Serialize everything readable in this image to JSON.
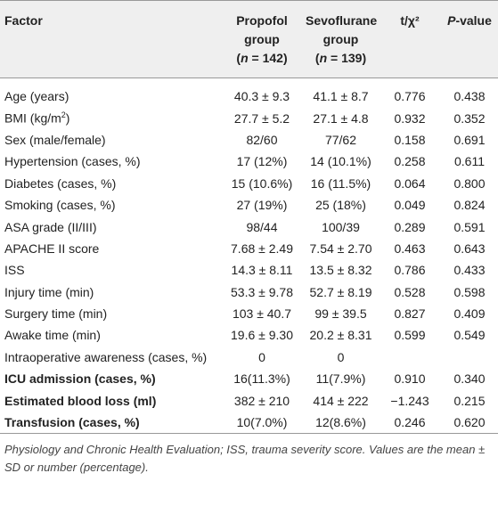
{
  "header": {
    "factor": "Factor",
    "propofol": {
      "name": "Propofol group",
      "n": [
        "(",
        "n",
        " = 142)"
      ]
    },
    "sevoflurane": {
      "name": "Sevoflurane group",
      "n": [
        "(",
        "n",
        " = 139)"
      ]
    },
    "stat": "t/χ²",
    "pvalue": [
      "P",
      "-value"
    ]
  },
  "table": {
    "rows": [
      {
        "cells": [
          "Age (years)",
          "40.3 ± 9.3",
          "41.1 ± 8.7",
          "0.776",
          "0.438"
        ]
      },
      {
        "cells": [
          [
            "BMI (kg/m",
            "2",
            ")"
          ],
          "27.7 ± 5.2",
          "27.1 ± 4.8",
          "0.932",
          "0.352"
        ]
      },
      {
        "cells": [
          "Sex (male/female)",
          "82/60",
          "77/62",
          "0.158",
          "0.691"
        ]
      },
      {
        "cells": [
          "Hypertension (cases, %)",
          "17 (12%)",
          "14 (10.1%)",
          "0.258",
          "0.611"
        ]
      },
      {
        "cells": [
          "Diabetes (cases, %)",
          "15 (10.6%)",
          "16 (11.5%)",
          "0.064",
          "0.800"
        ]
      },
      {
        "cells": [
          "Smoking (cases, %)",
          "27 (19%)",
          "25 (18%)",
          "0.049",
          "0.824"
        ]
      },
      {
        "cells": [
          "ASA grade (II/III)",
          "98/44",
          "100/39",
          "0.289",
          "0.591"
        ]
      },
      {
        "cells": [
          "APACHE II score",
          "7.68 ± 2.49",
          "7.54 ± 2.70",
          "0.463",
          "0.643"
        ]
      },
      {
        "cells": [
          "ISS",
          "14.3 ± 8.11",
          "13.5 ± 8.32",
          "0.786",
          "0.433"
        ]
      },
      {
        "cells": [
          "Injury time (min)",
          "53.3 ± 9.78",
          "52.7 ± 8.19",
          "0.528",
          "0.598"
        ]
      },
      {
        "cells": [
          "Surgery time (min)",
          "103 ± 40.7",
          "99 ± 39.5",
          "0.827",
          "0.409"
        ]
      },
      {
        "cells": [
          "Awake time (min)",
          "19.6 ± 9.30",
          "20.2 ± 8.31",
          "0.599",
          "0.549"
        ]
      },
      {
        "cells": [
          "Intraoperative awareness (cases, %)",
          "0",
          "0",
          null,
          null
        ]
      },
      {
        "cells": [
          "ICU admission (cases, %)",
          "16(11.3%)",
          "11(7.9%)",
          "0.910",
          "0.340"
        ],
        "bold": true
      },
      {
        "cells": [
          "Estimated blood loss (ml)",
          "382 ± 210",
          "414 ± 222",
          "−1.243",
          "0.215"
        ],
        "bold": true
      },
      {
        "cells": [
          "Transfusion (cases, %)",
          "10(7.0%)",
          "12(8.6%)",
          "0.246",
          "0.620"
        ],
        "bold": true
      }
    ]
  },
  "footnote": "Physiology and Chronic Health Evaluation; ISS, trauma severity score. Values are the mean ± SD or number (percentage)."
}
